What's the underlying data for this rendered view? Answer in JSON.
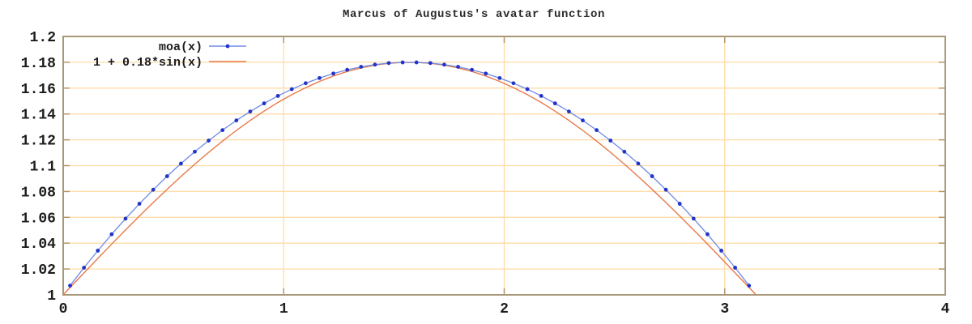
{
  "title": {
    "text": "Marcus of Augustus's avatar function"
  },
  "colors": {
    "background": "#ffffff",
    "plot_border": "#a89878",
    "grid": "#ffdca6",
    "tick_mark": "#b5956a",
    "label_text": "#1c1c1c",
    "moa_point": "#2134c8",
    "moa_line": "#6f89e6",
    "sine_line": "#e8794a"
  },
  "chart_data": {
    "type": "line",
    "title": "Marcus of Augustus's avatar function",
    "xlabel": "",
    "ylabel": "",
    "xlim": [
      0,
      4
    ],
    "ylim": [
      1,
      1.2
    ],
    "grid": true,
    "legend_position": "top-left",
    "x_ticks": {
      "values": [
        0,
        1,
        2,
        3,
        4
      ],
      "labels": [
        "0",
        "1",
        "2",
        "3",
        "4"
      ]
    },
    "y_ticks": {
      "values": [
        1,
        1.02,
        1.04,
        1.06,
        1.08,
        1.1,
        1.12,
        1.14,
        1.16,
        1.18,
        1.2
      ],
      "labels": [
        "1",
        "1.02",
        "1.04",
        "1.06",
        "1.08",
        "1.1",
        "1.12",
        "1.14",
        "1.16",
        "1.18",
        "1.2"
      ]
    },
    "series": [
      {
        "name": "moa(x)",
        "style": "linespoints",
        "marker": "filled-circle",
        "points": [
          [
            0.0314,
            1.0071
          ],
          [
            0.0942,
            1.021
          ],
          [
            0.1571,
            1.0342
          ],
          [
            0.2199,
            1.0469
          ],
          [
            0.2827,
            1.059
          ],
          [
            0.3456,
            1.0705
          ],
          [
            0.4084,
            1.0814
          ],
          [
            0.4712,
            1.0918
          ],
          [
            0.5341,
            1.1016
          ],
          [
            0.5969,
            1.1108
          ],
          [
            0.6597,
            1.1194
          ],
          [
            0.7226,
            1.1275
          ],
          [
            0.7854,
            1.135
          ],
          [
            0.8482,
            1.1419
          ],
          [
            0.9111,
            1.1482
          ],
          [
            0.9739,
            1.154
          ],
          [
            1.0367,
            1.1592
          ],
          [
            1.0996,
            1.1638
          ],
          [
            1.1624,
            1.1678
          ],
          [
            1.2252,
            1.1713
          ],
          [
            1.2881,
            1.1742
          ],
          [
            1.3509,
            1.1765
          ],
          [
            1.4137,
            1.1782
          ],
          [
            1.4765,
            1.1794
          ],
          [
            1.5394,
            1.1799
          ],
          [
            1.6022,
            1.1799
          ],
          [
            1.665,
            1.1794
          ],
          [
            1.7279,
            1.1782
          ],
          [
            1.7907,
            1.1765
          ],
          [
            1.8535,
            1.1742
          ],
          [
            1.9164,
            1.1713
          ],
          [
            1.9792,
            1.1678
          ],
          [
            2.042,
            1.1638
          ],
          [
            2.1049,
            1.1592
          ],
          [
            2.1677,
            1.154
          ],
          [
            2.2305,
            1.1482
          ],
          [
            2.2934,
            1.1419
          ],
          [
            2.3562,
            1.135
          ],
          [
            2.419,
            1.1275
          ],
          [
            2.4819,
            1.1194
          ],
          [
            2.5447,
            1.1108
          ],
          [
            2.6075,
            1.1016
          ],
          [
            2.6704,
            1.0918
          ],
          [
            2.7332,
            1.0814
          ],
          [
            2.796,
            1.0705
          ],
          [
            2.8588,
            1.059
          ],
          [
            2.9217,
            1.0469
          ],
          [
            2.9845,
            1.0342
          ],
          [
            3.0473,
            1.021
          ],
          [
            3.1102,
            1.0071
          ]
        ]
      },
      {
        "name": "1 + 0.18*sin(x)",
        "style": "line",
        "marker": "none",
        "points": [
          [
            0.0,
            1.0
          ],
          [
            0.0314,
            1.0057
          ],
          [
            0.0942,
            1.0169
          ],
          [
            0.1571,
            1.0282
          ],
          [
            0.2199,
            1.0393
          ],
          [
            0.2827,
            1.0502
          ],
          [
            0.3456,
            1.061
          ],
          [
            0.4084,
            1.0715
          ],
          [
            0.4712,
            1.0817
          ],
          [
            0.5341,
            1.0916
          ],
          [
            0.5969,
            1.1012
          ],
          [
            0.6597,
            1.1103
          ],
          [
            0.7226,
            1.119
          ],
          [
            0.7854,
            1.1273
          ],
          [
            0.8482,
            1.135
          ],
          [
            0.9111,
            1.1422
          ],
          [
            0.9739,
            1.1489
          ],
          [
            1.0367,
            1.1549
          ],
          [
            1.0996,
            1.1604
          ],
          [
            1.1624,
            1.1652
          ],
          [
            1.2252,
            1.1694
          ],
          [
            1.2881,
            1.1729
          ],
          [
            1.3509,
            1.1757
          ],
          [
            1.4137,
            1.1778
          ],
          [
            1.4765,
            1.1792
          ],
          [
            1.5394,
            1.1799
          ],
          [
            1.6022,
            1.1799
          ],
          [
            1.665,
            1.1792
          ],
          [
            1.7279,
            1.1778
          ],
          [
            1.7907,
            1.1757
          ],
          [
            1.8535,
            1.1729
          ],
          [
            1.9164,
            1.1694
          ],
          [
            1.9792,
            1.1652
          ],
          [
            2.042,
            1.1604
          ],
          [
            2.1049,
            1.1549
          ],
          [
            2.1677,
            1.1489
          ],
          [
            2.2305,
            1.1422
          ],
          [
            2.2934,
            1.135
          ],
          [
            2.3562,
            1.1273
          ],
          [
            2.419,
            1.119
          ],
          [
            2.4819,
            1.1103
          ],
          [
            2.5447,
            1.1012
          ],
          [
            2.6075,
            1.0916
          ],
          [
            2.6704,
            1.0817
          ],
          [
            2.7332,
            1.0715
          ],
          [
            2.796,
            1.061
          ],
          [
            2.8588,
            1.0502
          ],
          [
            2.9217,
            1.0393
          ],
          [
            2.9845,
            1.0282
          ],
          [
            3.0473,
            1.0169
          ],
          [
            3.1102,
            1.0057
          ],
          [
            3.1416,
            1.0
          ]
        ]
      }
    ]
  }
}
